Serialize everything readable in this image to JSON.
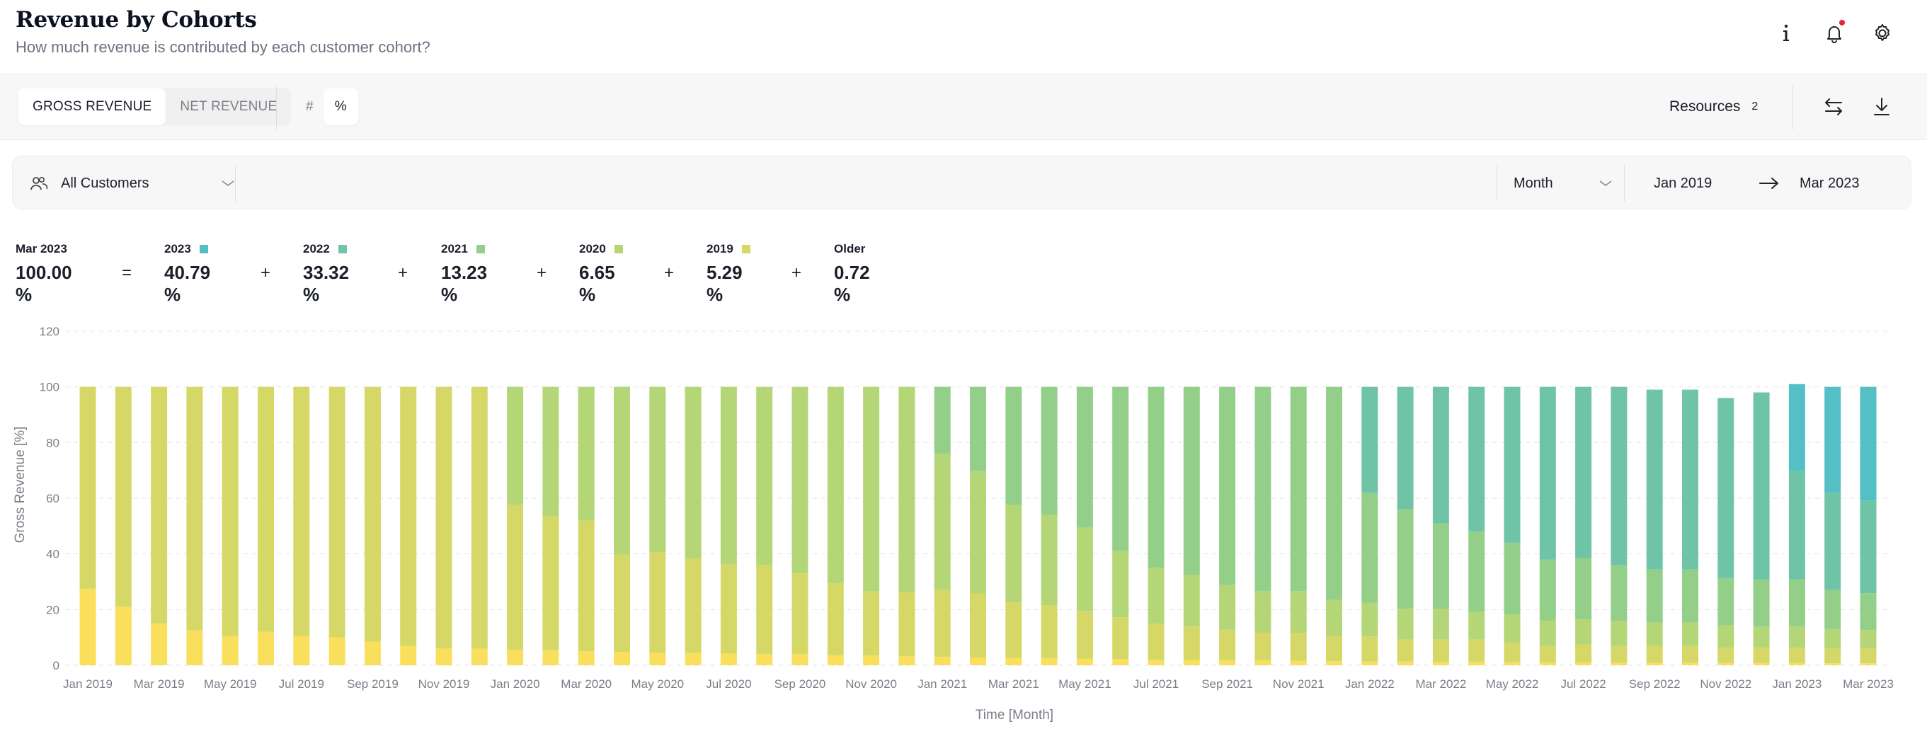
{
  "header": {
    "title": "Revenue by Cohorts",
    "subtitle": "How much revenue is contributed by each customer cohort?",
    "icons": [
      "info-icon",
      "bell-icon",
      "gear-icon"
    ]
  },
  "toolbar": {
    "revenue_tabs": [
      {
        "label": "GROSS REVENUE",
        "active": true
      },
      {
        "label": "NET REVENUE",
        "active": false
      }
    ],
    "mode_tabs": [
      {
        "label": "#",
        "active": false
      },
      {
        "label": "%",
        "active": true
      }
    ],
    "resources_label": "Resources",
    "resources_count": "2"
  },
  "filters": {
    "segment": "All Customers",
    "granularity": "Month",
    "date_from": "Jan 2019",
    "date_to": "Mar 2023"
  },
  "summary": {
    "period": "Mar 2023",
    "total": "100.00 %",
    "equals": "=",
    "plus": "+",
    "items": [
      {
        "label": "2023",
        "value": "40.79 %",
        "color": "#55bfc6"
      },
      {
        "label": "2022",
        "value": "33.32 %",
        "color": "#6fc4a8"
      },
      {
        "label": "2021",
        "value": "13.23 %",
        "color": "#94cf8a"
      },
      {
        "label": "2020",
        "value": "6.65 %",
        "color": "#b4d676"
      },
      {
        "label": "2019",
        "value": "5.29 %",
        "color": "#d5d867"
      },
      {
        "label": "Older",
        "value": "0.72 %",
        "color": "#f9df5c"
      }
    ]
  },
  "chart_data": {
    "type": "bar",
    "stacked": true,
    "xlabel": "Time [Month]",
    "ylabel": "Gross Revenue [%]",
    "ylim": [
      0,
      120
    ],
    "yticks": [
      0,
      20,
      40,
      60,
      80,
      100,
      120
    ],
    "grid": true,
    "categories": [
      "Jan 2019",
      "Feb 2019",
      "Mar 2019",
      "Apr 2019",
      "May 2019",
      "Jun 2019",
      "Jul 2019",
      "Aug 2019",
      "Sep 2019",
      "Oct 2019",
      "Nov 2019",
      "Dec 2019",
      "Jan 2020",
      "Feb 2020",
      "Mar 2020",
      "Apr 2020",
      "May 2020",
      "Jun 2020",
      "Jul 2020",
      "Aug 2020",
      "Sep 2020",
      "Oct 2020",
      "Nov 2020",
      "Dec 2020",
      "Jan 2021",
      "Feb 2021",
      "Mar 2021",
      "Apr 2021",
      "May 2021",
      "Jun 2021",
      "Jul 2021",
      "Aug 2021",
      "Sep 2021",
      "Oct 2021",
      "Nov 2021",
      "Dec 2021",
      "Jan 2022",
      "Feb 2022",
      "Mar 2022",
      "Apr 2022",
      "May 2022",
      "Jun 2022",
      "Jul 2022",
      "Aug 2022",
      "Sep 2022",
      "Oct 2022",
      "Nov 2022",
      "Dec 2022",
      "Jan 2023",
      "Feb 2023",
      "Mar 2023"
    ],
    "xtick_labels": [
      "Jan 2019",
      "Mar 2019",
      "May 2019",
      "Jul 2019",
      "Sep 2019",
      "Nov 2019",
      "Jan 2020",
      "Mar 2020",
      "May 2020",
      "Jul 2020",
      "Sep 2020",
      "Nov 2020",
      "Jan 2021",
      "Mar 2021",
      "May 2021",
      "Jul 2021",
      "Sep 2021",
      "Nov 2021",
      "Jan 2022",
      "Mar 2022",
      "May 2022",
      "Jul 2022",
      "Sep 2022",
      "Nov 2022",
      "Jan 2023",
      "Mar 2023"
    ],
    "series": [
      {
        "name": "Older",
        "color": "#f9df5c",
        "values": [
          27.5,
          21,
          15,
          12.5,
          10.5,
          12,
          10.5,
          10,
          8.5,
          7,
          6,
          6,
          5.5,
          5.5,
          5,
          4.8,
          4.5,
          4.5,
          4.2,
          4,
          4,
          3.5,
          3.5,
          3.2,
          3,
          2.8,
          2.6,
          2.5,
          2.4,
          2.2,
          2,
          1.9,
          1.8,
          1.7,
          1.6,
          1.5,
          1.4,
          1.3,
          1.2,
          1.2,
          1.1,
          1,
          1,
          0.9,
          0.9,
          0.9,
          0.8,
          0.8,
          0.8,
          0.7,
          0.72
        ]
      },
      {
        "name": "2019",
        "color": "#d5d867",
        "values": [
          72.5,
          79,
          85,
          87.5,
          89.5,
          88,
          89.5,
          90,
          91.5,
          93,
          94,
          94,
          52,
          48,
          47,
          35,
          36,
          34,
          32,
          32,
          29,
          26,
          23,
          23,
          24,
          23,
          20,
          19,
          17,
          15,
          13,
          12,
          11,
          10,
          10,
          9,
          9,
          8,
          8,
          8,
          7,
          6,
          6.5,
          6,
          6,
          6,
          5.5,
          5.5,
          5.5,
          5.3,
          5.29
        ]
      },
      {
        "name": "2020",
        "color": "#b4d676",
        "values": [
          0,
          0,
          0,
          0,
          0,
          0,
          0,
          0,
          0,
          0,
          0,
          0,
          42.5,
          46.5,
          48,
          60.2,
          59.5,
          61.5,
          63.8,
          64,
          67,
          70.5,
          73.5,
          73.8,
          49,
          44,
          35,
          32.5,
          30,
          24,
          20,
          18.5,
          16,
          15,
          15,
          13,
          12,
          11,
          11,
          10,
          10,
          9,
          9,
          9,
          8.5,
          8.5,
          8,
          7.5,
          7.5,
          7,
          6.65
        ]
      },
      {
        "name": "2021",
        "color": "#94cf8a",
        "values": [
          0,
          0,
          0,
          0,
          0,
          0,
          0,
          0,
          0,
          0,
          0,
          0,
          0,
          0,
          0,
          0,
          0,
          0,
          0,
          0,
          0,
          0,
          0,
          0,
          24,
          30.2,
          42.4,
          46,
          50.6,
          58.8,
          65,
          67.6,
          71.2,
          73.3,
          73.4,
          76.5,
          39.6,
          35.7,
          30.8,
          28.8,
          25.9,
          22,
          22,
          20,
          19,
          19,
          17,
          17,
          17,
          14,
          13.23
        ]
      },
      {
        "name": "2022",
        "color": "#6fc4a8",
        "values": [
          0,
          0,
          0,
          0,
          0,
          0,
          0,
          0,
          0,
          0,
          0,
          0,
          0,
          0,
          0,
          0,
          0,
          0,
          0,
          0,
          0,
          0,
          0,
          0,
          0,
          0,
          0,
          0,
          0,
          0,
          0,
          0,
          0,
          0,
          0,
          0,
          38,
          44,
          49,
          52,
          56,
          62,
          61.5,
          64.1,
          64.6,
          64.6,
          64.7,
          67.2,
          39,
          35,
          33.32
        ]
      },
      {
        "name": "2023",
        "color": "#55bfc6",
        "values": [
          0,
          0,
          0,
          0,
          0,
          0,
          0,
          0,
          0,
          0,
          0,
          0,
          0,
          0,
          0,
          0,
          0,
          0,
          0,
          0,
          0,
          0,
          0,
          0,
          0,
          0,
          0,
          0,
          0,
          0,
          0,
          0,
          0,
          0,
          0,
          0,
          0,
          0,
          0,
          0,
          0,
          0,
          0,
          0,
          0,
          0,
          0,
          0,
          31.2,
          38,
          40.79
        ]
      }
    ]
  }
}
